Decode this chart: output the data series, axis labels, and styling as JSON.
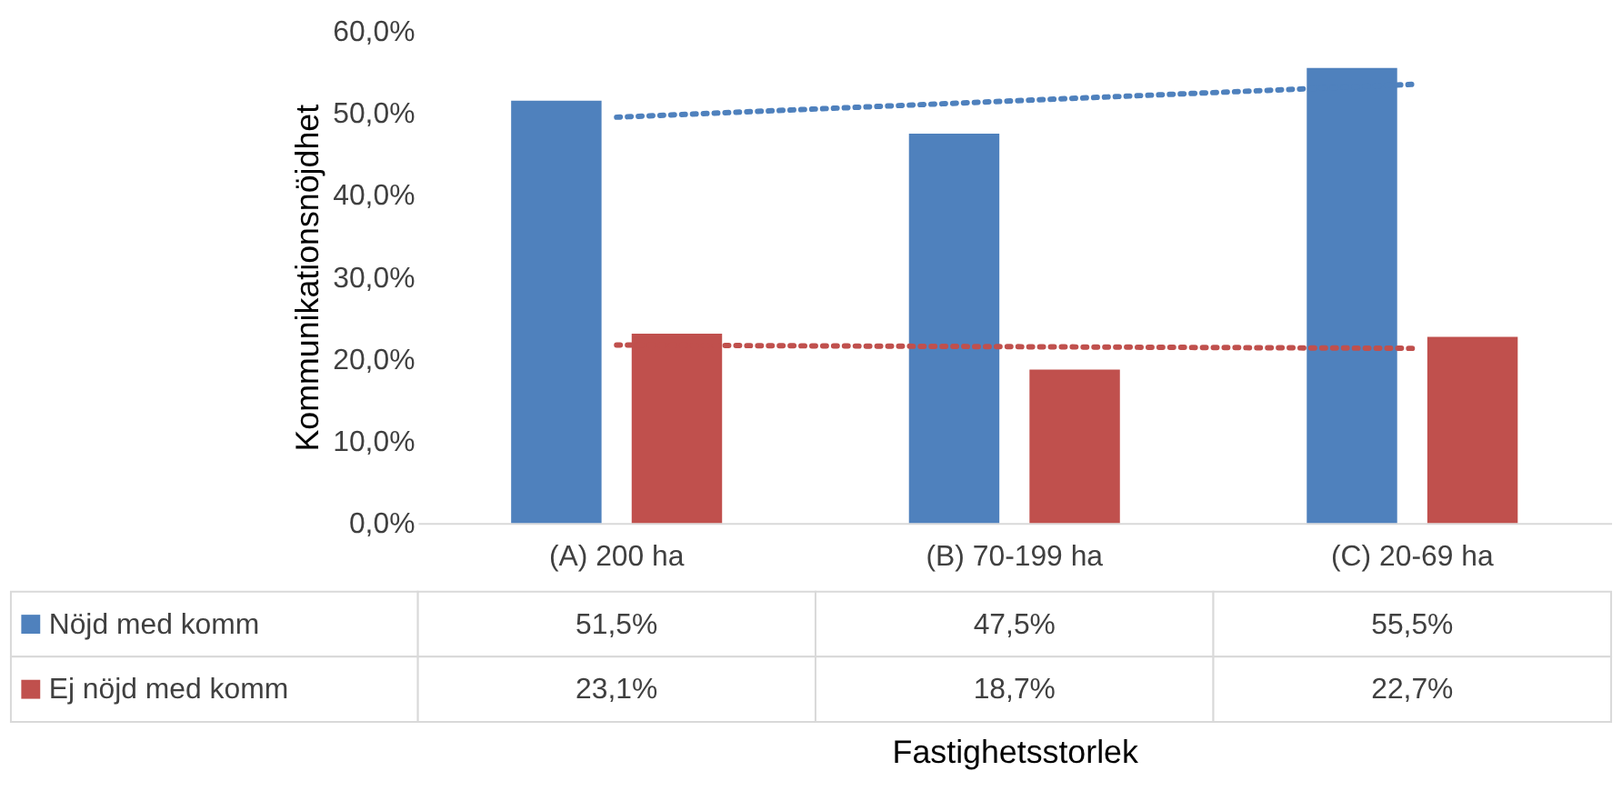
{
  "chart_data": {
    "type": "bar",
    "xlabel": "Fastighetsstorlek",
    "ylabel": "Kommunikationsnöjdhet",
    "categories": [
      "(A) 200 ha",
      "(B) 70-199 ha",
      "(C) 20-69 ha"
    ],
    "series": [
      {
        "name": "Nöjd med komm",
        "color": "#4f81bd",
        "values": [
          51.5,
          47.5,
          55.5
        ],
        "value_labels": [
          "51,5%",
          "47,5%",
          "55,5%"
        ]
      },
      {
        "name": "Ej nöjd med komm",
        "color": "#c0504d",
        "values": [
          23.1,
          18.7,
          22.7
        ],
        "value_labels": [
          "23,1%",
          "18,7%",
          "22,7%"
        ]
      },
      {
        "type": "line",
        "color": "#4f81bd",
        "line_style": "dotted",
        "x": [
          "(A) 200 ha",
          "(B) 70-199 ha",
          "(C) 20-69 ha"
        ],
        "values": [
          49.5,
          51.5,
          53.5
        ]
      },
      {
        "type": "line",
        "color": "#c0504d",
        "line_style": "dotted",
        "x": [
          "(A) 200 ha",
          "(B) 70-199 ha",
          "(C) 20-69 ha"
        ],
        "values": [
          21.7,
          21.5,
          21.3
        ]
      }
    ],
    "ylim": [
      0,
      60
    ],
    "yticks": [
      {
        "value": 0,
        "label": "0,0%"
      },
      {
        "value": 10,
        "label": "10,0%"
      },
      {
        "value": 20,
        "label": "20,0%"
      },
      {
        "value": 30,
        "label": "30,0%"
      },
      {
        "value": 40,
        "label": "40,0%"
      },
      {
        "value": 50,
        "label": "50,0%"
      },
      {
        "value": 60,
        "label": "60,0%"
      }
    ],
    "grid": false,
    "legend": "bottom"
  }
}
